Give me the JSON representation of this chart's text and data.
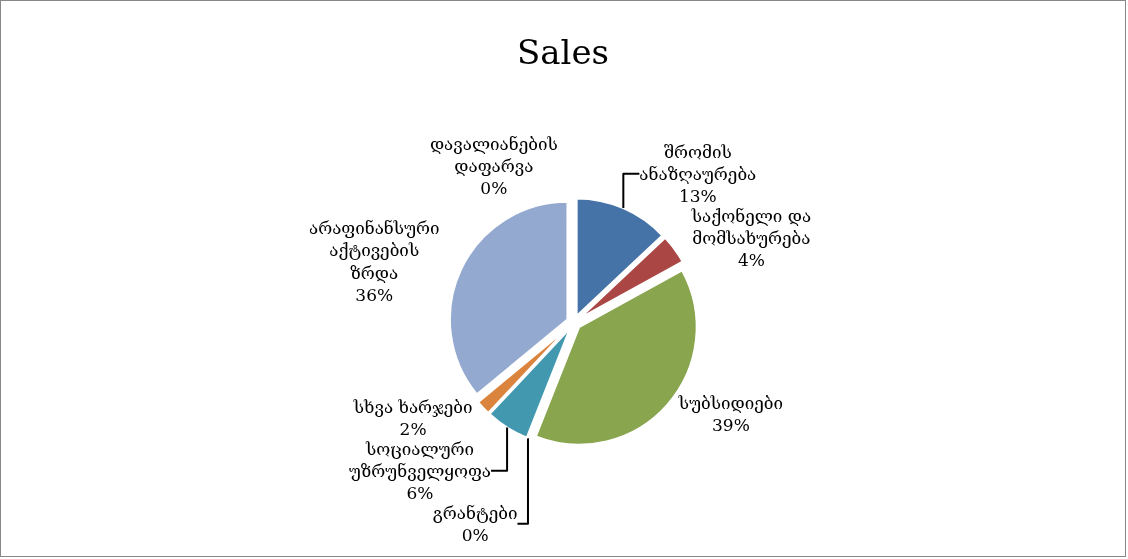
{
  "chart_data": {
    "type": "pie",
    "title": "Sales",
    "categories": [
      "შრომის ანაზღაურება",
      "საქონელი და მომსახურება",
      "სუბსიდიები",
      "გრანტები",
      "სოციალური უზრუნველყოფა",
      "სხვა ხარჯები",
      "არაფინანსური აქტივების ზრდა",
      "დავალიანების დაფარვა"
    ],
    "values": [
      13,
      4,
      39,
      0,
      6,
      2,
      36,
      0
    ],
    "value_labels": [
      "13%",
      "4%",
      "39%",
      "0%",
      "6%",
      "2%",
      "36%",
      "0%"
    ],
    "colors": [
      "#4572a7",
      "#aa4643",
      "#89a54e",
      "#71588f",
      "#4198af",
      "#db843d",
      "#93a9cf",
      "#d19392"
    ],
    "legend": false
  }
}
